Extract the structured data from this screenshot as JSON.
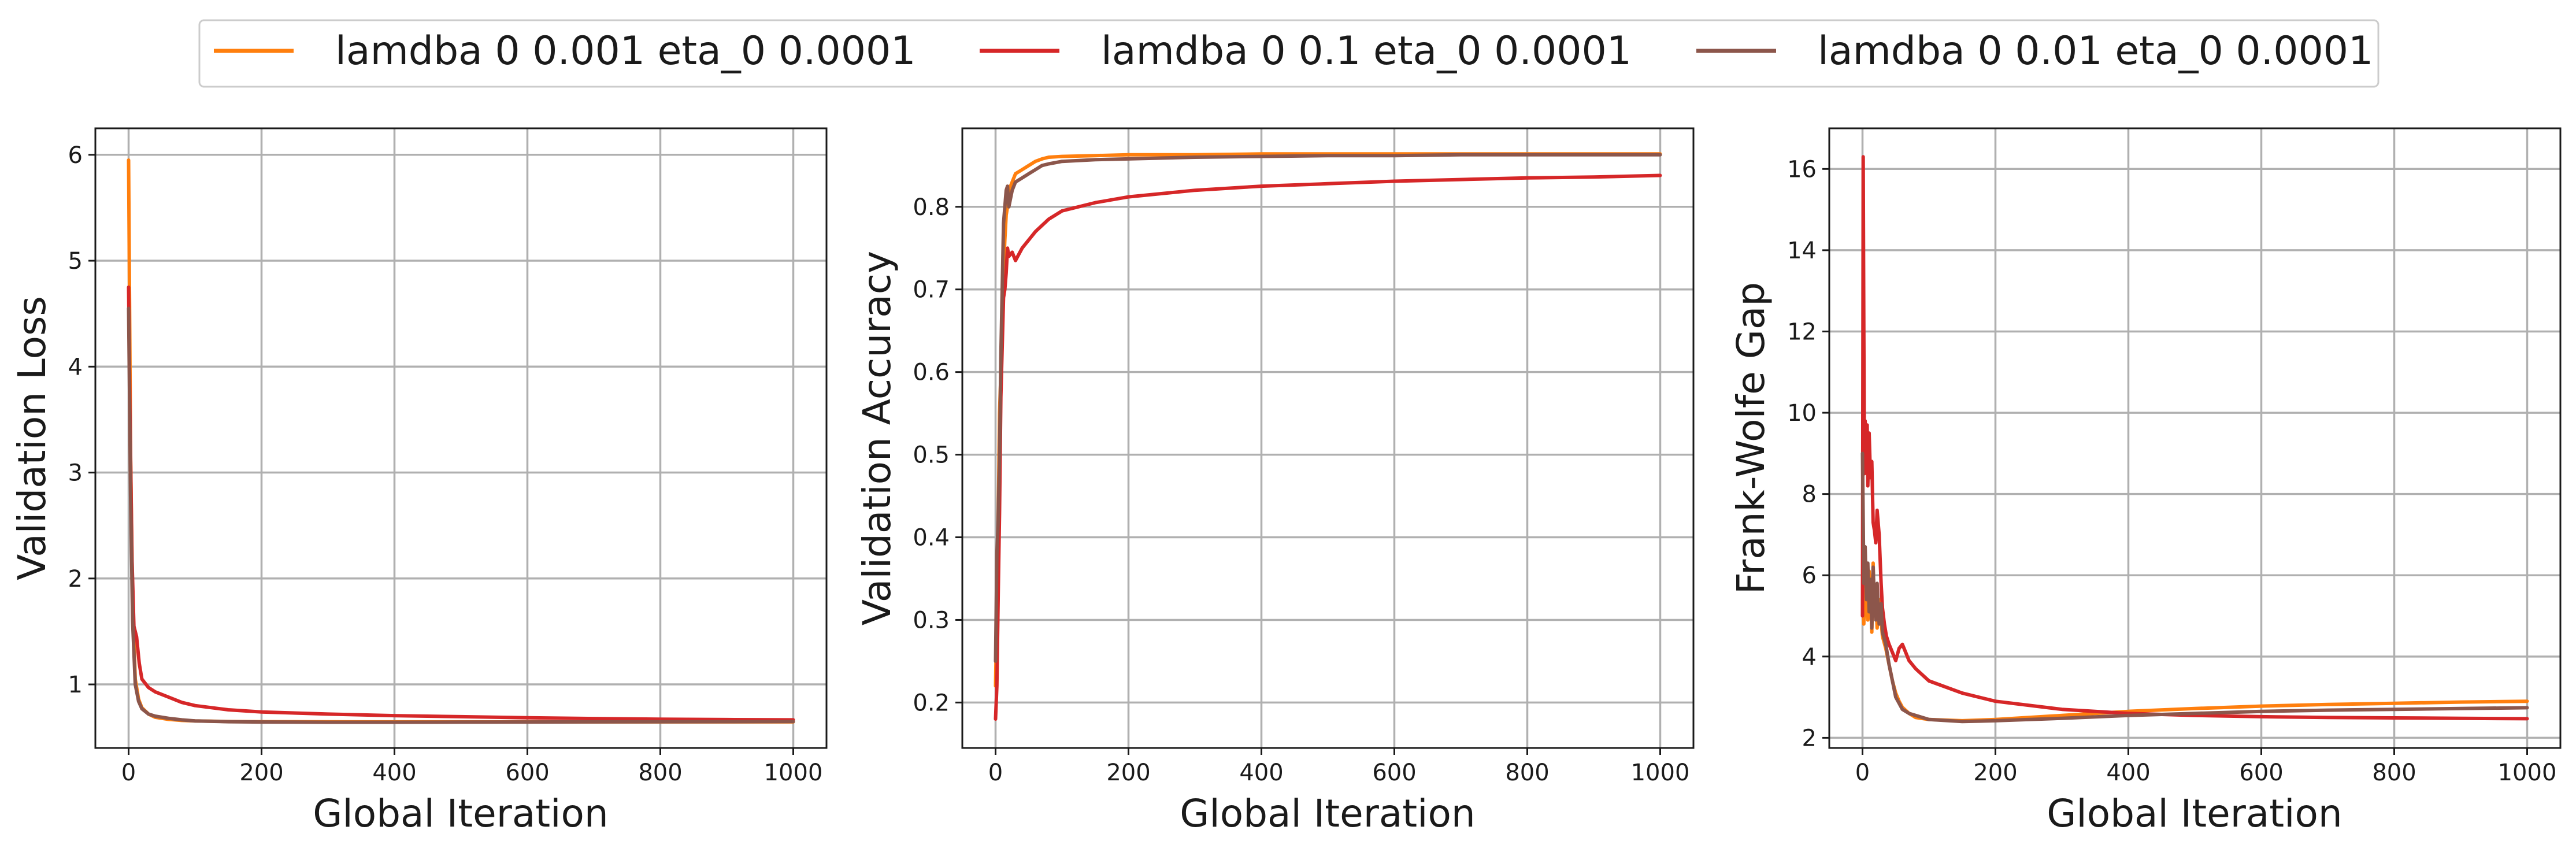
{
  "chart_data": [
    {
      "type": "line",
      "xlabel": "Global Iteration",
      "ylabel": "Validation Loss",
      "xlim": [
        -50,
        1050
      ],
      "ylim": [
        0.4,
        6.25
      ],
      "xticks": [
        0,
        200,
        400,
        600,
        800,
        1000
      ],
      "yticks": [
        1,
        2,
        3,
        4,
        5,
        6
      ],
      "grid": true,
      "series": [
        {
          "name": "lamdba 0 0.001 eta_0 0.0001",
          "color": "#ff7f0e",
          "x": [
            0,
            3,
            6,
            10,
            15,
            20,
            30,
            40,
            60,
            80,
            100,
            150,
            200,
            300,
            400,
            500,
            600,
            700,
            800,
            900,
            1000
          ],
          "y": [
            5.95,
            3.2,
            1.8,
            1.05,
            0.86,
            0.78,
            0.72,
            0.69,
            0.67,
            0.66,
            0.655,
            0.65,
            0.648,
            0.647,
            0.646,
            0.646,
            0.646,
            0.646,
            0.646,
            0.646,
            0.646
          ]
        },
        {
          "name": "lamdba 0 0.1 eta_0 0.0001",
          "color": "#d62728",
          "x": [
            0,
            2,
            5,
            8,
            12,
            16,
            20,
            30,
            40,
            60,
            80,
            100,
            150,
            200,
            300,
            400,
            500,
            600,
            700,
            800,
            900,
            1000
          ],
          "y": [
            4.75,
            3.6,
            2.2,
            1.55,
            1.45,
            1.2,
            1.05,
            0.97,
            0.93,
            0.88,
            0.83,
            0.8,
            0.76,
            0.74,
            0.72,
            0.705,
            0.695,
            0.685,
            0.678,
            0.672,
            0.668,
            0.665
          ]
        },
        {
          "name": "lamdba 0 0.01 eta_0 0.0001",
          "color": "#8c564b",
          "x": [
            0,
            3,
            6,
            10,
            15,
            20,
            30,
            40,
            60,
            80,
            100,
            150,
            200,
            300,
            400,
            500,
            600,
            700,
            800,
            900,
            1000
          ],
          "y": [
            4.55,
            2.8,
            1.6,
            1.0,
            0.84,
            0.77,
            0.72,
            0.7,
            0.68,
            0.665,
            0.655,
            0.648,
            0.645,
            0.643,
            0.643,
            0.644,
            0.645,
            0.646,
            0.647,
            0.648,
            0.649
          ]
        }
      ]
    },
    {
      "type": "line",
      "xlabel": "Global Iteration",
      "ylabel": "Validation Accuracy",
      "xlim": [
        -50,
        1050
      ],
      "ylim": [
        0.145,
        0.895
      ],
      "xticks": [
        0,
        200,
        400,
        600,
        800,
        1000
      ],
      "yticks": [
        0.2,
        0.3,
        0.4,
        0.5,
        0.6,
        0.7,
        0.8
      ],
      "grid": true,
      "series": [
        {
          "name": "lamdba 0 0.001 eta_0 0.0001",
          "color": "#ff7f0e",
          "x": [
            0,
            2,
            4,
            6,
            8,
            10,
            12,
            14,
            16,
            18,
            20,
            25,
            30,
            40,
            50,
            60,
            70,
            80,
            100,
            150,
            200,
            300,
            400,
            500,
            600,
            700,
            800,
            900,
            1000
          ],
          "y": [
            0.22,
            0.32,
            0.42,
            0.55,
            0.6,
            0.66,
            0.72,
            0.76,
            0.79,
            0.8,
            0.82,
            0.83,
            0.84,
            0.845,
            0.85,
            0.855,
            0.858,
            0.86,
            0.861,
            0.862,
            0.863,
            0.863,
            0.864,
            0.864,
            0.864,
            0.864,
            0.864,
            0.864,
            0.864
          ]
        },
        {
          "name": "lamdba 0 0.1 eta_0 0.0001",
          "color": "#d62728",
          "x": [
            0,
            2,
            4,
            6,
            8,
            10,
            12,
            14,
            16,
            18,
            20,
            25,
            30,
            40,
            50,
            60,
            80,
            100,
            150,
            200,
            300,
            400,
            500,
            600,
            700,
            800,
            900,
            1000
          ],
          "y": [
            0.18,
            0.22,
            0.33,
            0.43,
            0.57,
            0.63,
            0.69,
            0.7,
            0.72,
            0.75,
            0.74,
            0.745,
            0.735,
            0.75,
            0.76,
            0.77,
            0.785,
            0.795,
            0.805,
            0.812,
            0.82,
            0.825,
            0.828,
            0.831,
            0.833,
            0.835,
            0.836,
            0.838
          ]
        },
        {
          "name": "lamdba 0 0.01 eta_0 0.0001",
          "color": "#8c564b",
          "x": [
            0,
            2,
            4,
            6,
            8,
            10,
            12,
            14,
            16,
            18,
            20,
            25,
            30,
            40,
            50,
            60,
            70,
            80,
            100,
            150,
            200,
            300,
            400,
            500,
            600,
            700,
            800,
            900,
            1000
          ],
          "y": [
            0.25,
            0.38,
            0.42,
            0.5,
            0.62,
            0.7,
            0.78,
            0.8,
            0.82,
            0.825,
            0.8,
            0.82,
            0.83,
            0.835,
            0.84,
            0.845,
            0.85,
            0.852,
            0.855,
            0.857,
            0.858,
            0.86,
            0.861,
            0.862,
            0.862,
            0.863,
            0.863,
            0.863,
            0.863
          ]
        }
      ]
    },
    {
      "type": "line",
      "xlabel": "Global Iteration",
      "ylabel": "Frank-Wolfe Gap",
      "xlim": [
        -50,
        1050
      ],
      "ylim": [
        1.75,
        17.0
      ],
      "xticks": [
        0,
        200,
        400,
        600,
        800,
        1000
      ],
      "yticks": [
        2,
        4,
        6,
        8,
        10,
        12,
        14,
        16
      ],
      "grid": true,
      "series": [
        {
          "name": "lamdba 0 0.001 eta_0 0.0001",
          "color": "#ff7f0e",
          "x": [
            0,
            2,
            4,
            6,
            8,
            10,
            12,
            14,
            16,
            18,
            20,
            22,
            25,
            28,
            30,
            35,
            40,
            45,
            50,
            55,
            60,
            70,
            80,
            100,
            150,
            200,
            300,
            400,
            500,
            600,
            700,
            800,
            900,
            1000
          ],
          "y": [
            5.4,
            4.8,
            6.5,
            5.2,
            4.9,
            6.1,
            5.5,
            4.6,
            6.3,
            5.0,
            5.6,
            4.7,
            5.4,
            4.9,
            4.5,
            4.2,
            3.8,
            3.4,
            3.1,
            2.9,
            2.75,
            2.6,
            2.5,
            2.45,
            2.42,
            2.45,
            2.55,
            2.65,
            2.72,
            2.78,
            2.82,
            2.85,
            2.88,
            2.9
          ]
        },
        {
          "name": "lamdba 0 0.1 eta_0 0.0001",
          "color": "#d62728",
          "x": [
            0,
            1,
            2,
            3,
            4,
            5,
            6,
            7,
            8,
            10,
            12,
            14,
            16,
            18,
            20,
            22,
            25,
            28,
            30,
            33,
            36,
            40,
            45,
            50,
            55,
            60,
            65,
            70,
            80,
            100,
            150,
            200,
            300,
            400,
            500,
            600,
            700,
            800,
            900,
            1000
          ],
          "y": [
            5.0,
            16.3,
            12.0,
            8.5,
            9.8,
            8.7,
            9.3,
            9.7,
            8.2,
            9.5,
            8.4,
            8.8,
            7.3,
            7.1,
            6.8,
            7.6,
            7.0,
            5.8,
            5.2,
            4.8,
            4.5,
            4.3,
            4.1,
            3.9,
            4.2,
            4.3,
            4.1,
            3.9,
            3.7,
            3.4,
            3.1,
            2.9,
            2.7,
            2.6,
            2.55,
            2.52,
            2.5,
            2.49,
            2.48,
            2.47
          ]
        },
        {
          "name": "lamdba 0 0.01 eta_0 0.0001",
          "color": "#8c564b",
          "x": [
            0,
            2,
            4,
            6,
            8,
            10,
            12,
            14,
            16,
            18,
            20,
            22,
            25,
            28,
            30,
            35,
            40,
            45,
            50,
            55,
            60,
            70,
            80,
            100,
            150,
            200,
            300,
            400,
            500,
            600,
            700,
            800,
            900,
            1000
          ],
          "y": [
            9.0,
            5.8,
            6.7,
            5.4,
            6.3,
            5.1,
            5.9,
            4.7,
            6.2,
            5.3,
            4.9,
            5.8,
            4.8,
            5.3,
            4.6,
            4.3,
            3.8,
            3.4,
            3.0,
            2.85,
            2.7,
            2.6,
            2.55,
            2.45,
            2.4,
            2.42,
            2.48,
            2.55,
            2.6,
            2.65,
            2.68,
            2.7,
            2.72,
            2.74
          ]
        }
      ]
    }
  ],
  "legend": {
    "placement": "top-center",
    "items": [
      {
        "label": "lamdba 0 0.001 eta_0 0.0001",
        "color": "#ff7f0e"
      },
      {
        "label": "lamdba 0 0.1 eta_0 0.0001",
        "color": "#d62728"
      },
      {
        "label": "lamdba 0 0.01 eta_0 0.0001",
        "color": "#8c564b"
      }
    ]
  }
}
